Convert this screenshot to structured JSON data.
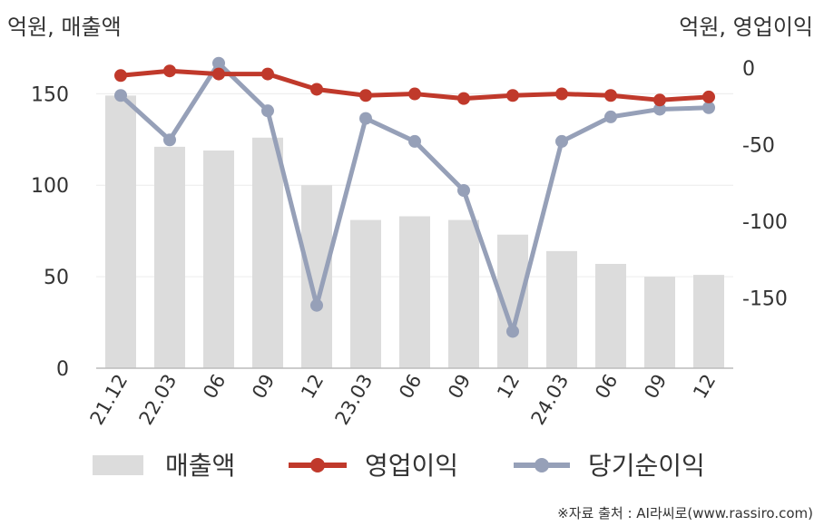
{
  "chart_data": {
    "type": "bar+line",
    "left_axis_title": "억원, 매출액",
    "right_axis_title": "억원, 영업이익",
    "categories": [
      "21.12",
      "22.03",
      "06",
      "09",
      "12",
      "23.03",
      "06",
      "09",
      "12",
      "24.03",
      "06",
      "09",
      "12"
    ],
    "left_axis": {
      "ticks": [
        0,
        50,
        100,
        150
      ],
      "range": [
        0,
        170
      ]
    },
    "right_axis": {
      "ticks": [
        0,
        -50,
        -100,
        -150
      ],
      "range": [
        -196,
        7
      ]
    },
    "grid": true,
    "legend_position": "bottom",
    "series": [
      {
        "name": "매출액",
        "type": "bar",
        "axis": "left",
        "color": "#dcdcdc",
        "values": [
          149,
          121,
          119,
          126,
          100,
          81,
          83,
          81,
          73,
          64,
          57,
          50,
          51
        ]
      },
      {
        "name": "영업이익",
        "type": "line",
        "axis": "right",
        "color": "#c0392b",
        "values": [
          -5,
          -2,
          -4,
          -4,
          -14,
          -18,
          -17,
          -20,
          -18,
          -17,
          -18,
          -21,
          -19
        ]
      },
      {
        "name": "당기순이익",
        "type": "line",
        "axis": "right",
        "color": "#96a0b8",
        "values": [
          -18,
          -47,
          3,
          -28,
          -155,
          -33,
          -48,
          -80,
          -172,
          -48,
          -32,
          -27,
          -26
        ]
      }
    ]
  },
  "footer": {
    "source": "※자료 출처 : AI라씨로(www.rassiro.com)"
  }
}
